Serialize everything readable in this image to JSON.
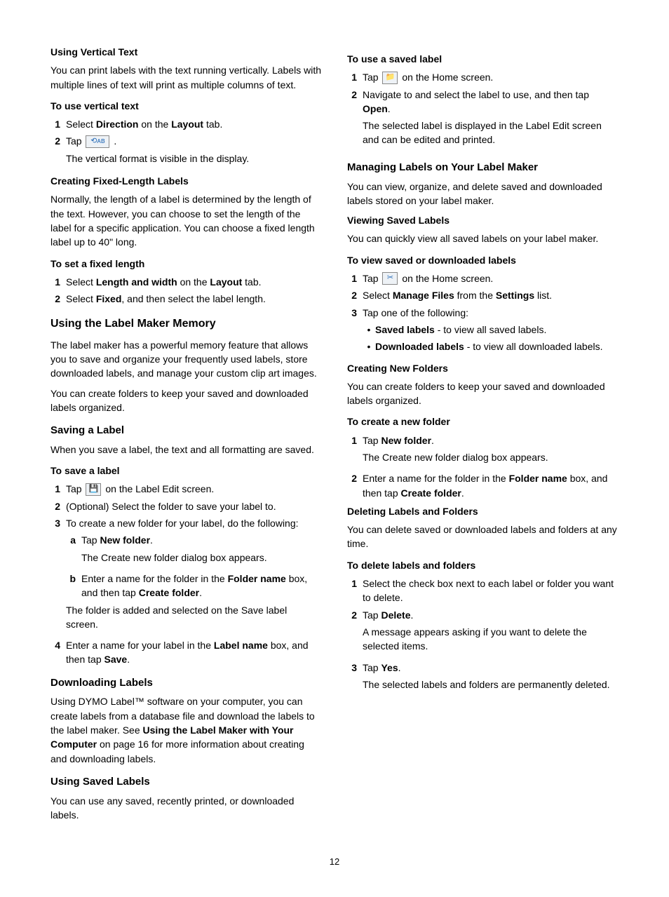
{
  "page_number": "12",
  "left": {
    "vertical_text": {
      "heading": "Using Vertical Text",
      "body": "You can print labels with the text running vertically. Labels with multiple lines of text will print as multiple columns of text.",
      "proc_heading": "To use vertical text",
      "step1_pre": "Select ",
      "step1_b1": "Direction",
      "step1_mid": " on the ",
      "step1_b2": "Layout",
      "step1_post": " tab.",
      "step2_pre": "Tap ",
      "step2_icon": "⟲ᴀᴮ",
      "step2_post": " .",
      "step2_note": "The vertical format is visible in the display."
    },
    "fixed_length": {
      "heading": "Creating Fixed-Length Labels",
      "body": "Normally, the length of a label is determined by the length of the text. However, you can choose to set the length of the label for a specific application. You can choose a fixed length label up to 40\" long.",
      "proc_heading": "To set a fixed length",
      "step1_pre": "Select ",
      "step1_b1": "Length and width",
      "step1_mid": " on the ",
      "step1_b2": "Layout",
      "step1_post": " tab.",
      "step2_pre": "Select ",
      "step2_b1": "Fixed",
      "step2_post": ", and then select the label length."
    },
    "memory": {
      "heading": "Using the Label Maker Memory",
      "body1": "The label maker has a powerful memory feature that allows you to save and organize your frequently used labels, store downloaded labels, and manage your custom clip art images.",
      "body2": "You can create folders to keep your saved and downloaded labels organized."
    },
    "saving": {
      "heading": "Saving a Label",
      "body": "When you save a label, the text and all formatting are saved.",
      "proc_heading": "To save a label",
      "step1_pre": "Tap ",
      "step1_icon": "💾",
      "step1_post": " on the Label Edit screen.",
      "step2": "(Optional) Select the folder to save your label to.",
      "step3": "To create a new folder for your label, do the following:",
      "step3a_pre": "Tap ",
      "step3a_b": "New folder",
      "step3a_post": ".",
      "step3a_note": "The Create new folder dialog box appears.",
      "step3b_pre": "Enter a name for the folder in the ",
      "step3b_b1": "Folder name",
      "step3b_mid": " box, and then tap ",
      "step3b_b2": "Create folder",
      "step3b_post": ".",
      "step3_note": "The folder is added and selected on the Save label screen.",
      "step4_pre": "Enter a name for your label in the ",
      "step4_b1": "Label name",
      "step4_mid": " box, and then tap ",
      "step4_b2": "Save",
      "step4_post": "."
    },
    "downloading": {
      "heading": "Downloading Labels",
      "body_pre": "Using DYMO Label™ software on your computer, you can create labels from a database file and download the labels to the label maker. See ",
      "body_b": "Using the Label Maker with Your Computer",
      "body_post": " on page 16 for more information about creating and downloading labels."
    },
    "using_saved": {
      "heading": "Using Saved Labels",
      "body": "You can use any saved, recently printed, or downloaded labels."
    }
  },
  "right": {
    "use_saved": {
      "proc_heading": "To use a saved label",
      "step1_pre": "Tap ",
      "step1_icon": "📁",
      "step1_post": " on the Home screen.",
      "step2_pre": "Navigate to and select the label to use, and then tap ",
      "step2_b": "Open",
      "step2_post": ".",
      "step2_note": "The selected label is displayed in the Label Edit screen and can be edited and printed."
    },
    "managing": {
      "heading": "Managing Labels on Your Label Maker",
      "body": "You can view, organize, and delete saved and downloaded labels stored on your label maker."
    },
    "viewing": {
      "heading": "Viewing Saved Labels",
      "body": "You can quickly view all saved labels on your label maker.",
      "proc_heading": "To view saved or downloaded labels",
      "step1_pre": "Tap ",
      "step1_icon": "✂",
      "step1_post": " on the Home screen.",
      "step2_pre": "Select ",
      "step2_b1": "Manage Files",
      "step2_mid": " from the ",
      "step2_b2": "Settings",
      "step2_post": " list.",
      "step3": "Tap one of the following:",
      "bullet1_b": "Saved labels",
      "bullet1_post": " - to view all saved labels.",
      "bullet2_b": "Downloaded labels",
      "bullet2_post": " - to view all downloaded labels."
    },
    "new_folders": {
      "heading": "Creating New Folders",
      "body": "You can create folders to keep your saved and downloaded labels organized.",
      "proc_heading": "To create a new folder",
      "step1_pre": "Tap ",
      "step1_b": "New folder",
      "step1_post": ".",
      "step1_note": "The Create new folder dialog box appears.",
      "step2_pre": "Enter a name for the folder in the ",
      "step2_b1": "Folder name",
      "step2_mid": " box, and then tap ",
      "step2_b2": "Create folder",
      "step2_post": "."
    },
    "deleting": {
      "heading": "Deleting Labels and Folders",
      "body": "You can delete saved or downloaded labels and folders at any time.",
      "proc_heading": "To delete labels and folders",
      "step1": "Select the check box next to each label or folder you want to delete.",
      "step2_pre": "Tap ",
      "step2_b": "Delete",
      "step2_post": ".",
      "step2_note": "A message appears asking if you want to delete the selected items.",
      "step3_pre": "Tap ",
      "step3_b": "Yes",
      "step3_post": ".",
      "step3_note": "The selected labels and folders are permanently deleted."
    }
  }
}
